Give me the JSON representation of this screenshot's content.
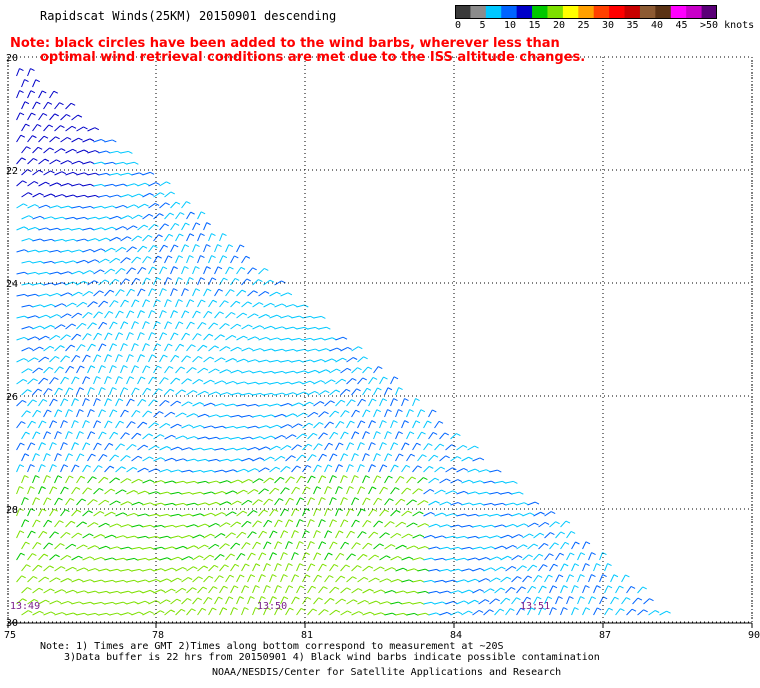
{
  "header": {
    "title": "Rapidscat Winds(25KM) 20150901 descending",
    "note_line1": "Note: black circles have been added to the wind barbs, wherever less than",
    "note_line2": "optimal wind retrieval conditions are met due to the ISS altitude changes."
  },
  "color_scale": {
    "labels": [
      "0",
      "5",
      "10",
      "15",
      "20",
      "25",
      "30",
      "35",
      "40",
      "45",
      ">50 knots"
    ],
    "colors": [
      "#3a3a3a",
      "#8c8c8c",
      "#00c8ff",
      "#0064ff",
      "#0000c8",
      "#00c800",
      "#7de000",
      "#ffff00",
      "#ffa000",
      "#ff4000",
      "#ff0000",
      "#c80000",
      "#8c5a32",
      "#5a3214",
      "#ff00ff",
      "#c800c8",
      "#5a0078"
    ]
  },
  "map": {
    "lat_labels": [
      "20",
      "22",
      "24",
      "26",
      "28",
      "30"
    ],
    "lon_labels": [
      "75",
      "78",
      "81",
      "84",
      "87",
      "90"
    ],
    "time_labels": [
      "13:49",
      "13:50",
      "13:51"
    ]
  },
  "footer": {
    "line1": "Note: 1) Times are GMT 2)Times along bottom correspond to measurement at ~20S",
    "line2": "3)Data buffer is 22 hrs from 20150901 4) Black wind barbs indicate possible contamination",
    "line3": "NOAA/NESDIS/Center for Satellite Applications and Research"
  }
}
